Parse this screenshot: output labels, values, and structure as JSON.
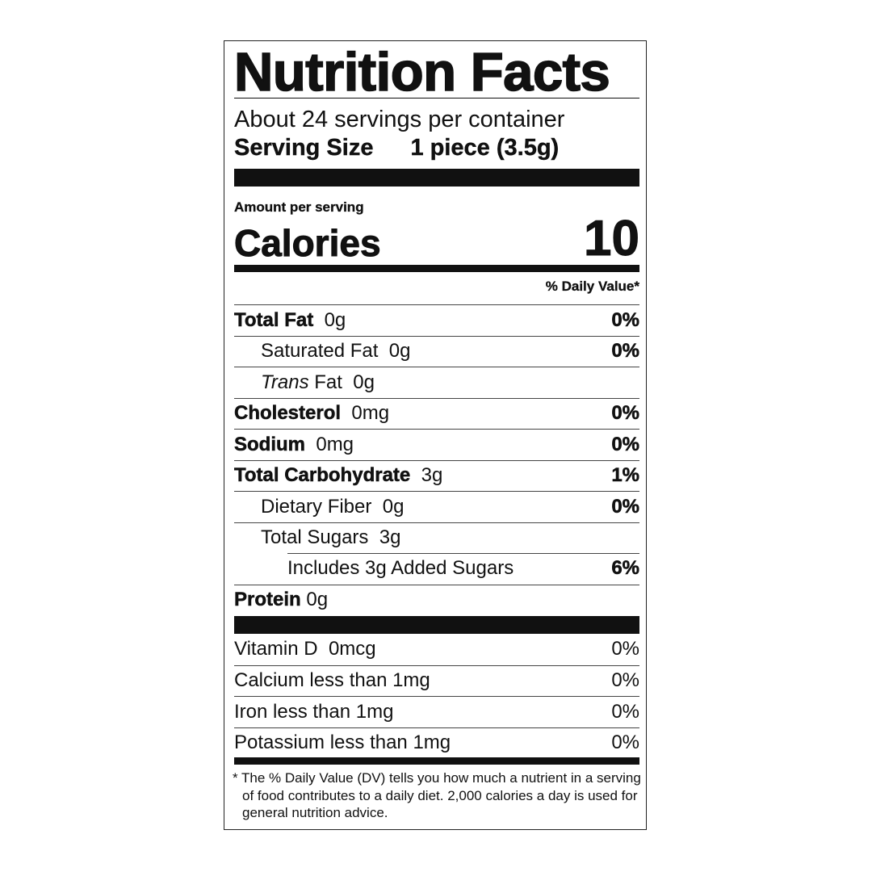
{
  "title": "Nutrition Facts",
  "servings_per_container": "About 24 servings per container",
  "serving_size": {
    "label": "Serving Size",
    "value": "1 piece (3.5g)"
  },
  "amount_per_serving": "Amount per serving",
  "calories": {
    "label": "Calories",
    "value": "10"
  },
  "daily_value_header": "% Daily Value*",
  "nutrients": [
    {
      "name": "Total Fat",
      "amount": "0g",
      "dv": "0%"
    },
    {
      "name": "Saturated Fat",
      "amount": "0g",
      "dv": "0%"
    },
    {
      "name_italic": "Trans",
      "name": "Fat",
      "amount": "0g",
      "dv": ""
    },
    {
      "name": "Cholesterol",
      "amount": "0mg",
      "dv": "0%"
    },
    {
      "name": "Sodium",
      "amount": "0mg",
      "dv": "0%"
    },
    {
      "name": "Total Carbohydrate",
      "amount": "3g",
      "dv": "1%"
    },
    {
      "name": "Dietary Fiber",
      "amount": "0g",
      "dv": "0%"
    },
    {
      "name": "Total Sugars",
      "amount": "3g",
      "dv": ""
    },
    {
      "name": "Includes 3g Added Sugars",
      "amount": "",
      "dv": "6%"
    },
    {
      "name": "Protein",
      "amount": "0g",
      "dv": ""
    }
  ],
  "vitamins": [
    {
      "name": "Vitamin D",
      "amount": "0mcg",
      "dv": "0%"
    },
    {
      "name": "Calcium",
      "amount": "less than 1mg",
      "dv": "0%"
    },
    {
      "name": "Iron",
      "amount": "less than 1mg",
      "dv": "0%"
    },
    {
      "name": "Potassium",
      "amount": "less than 1mg",
      "dv": "0%"
    }
  ],
  "footnote": "* The % Daily Value (DV) tells you how much a nutrient in a serving of food contributes to a daily diet. 2,000 calories a day is used for general nutrition advice."
}
